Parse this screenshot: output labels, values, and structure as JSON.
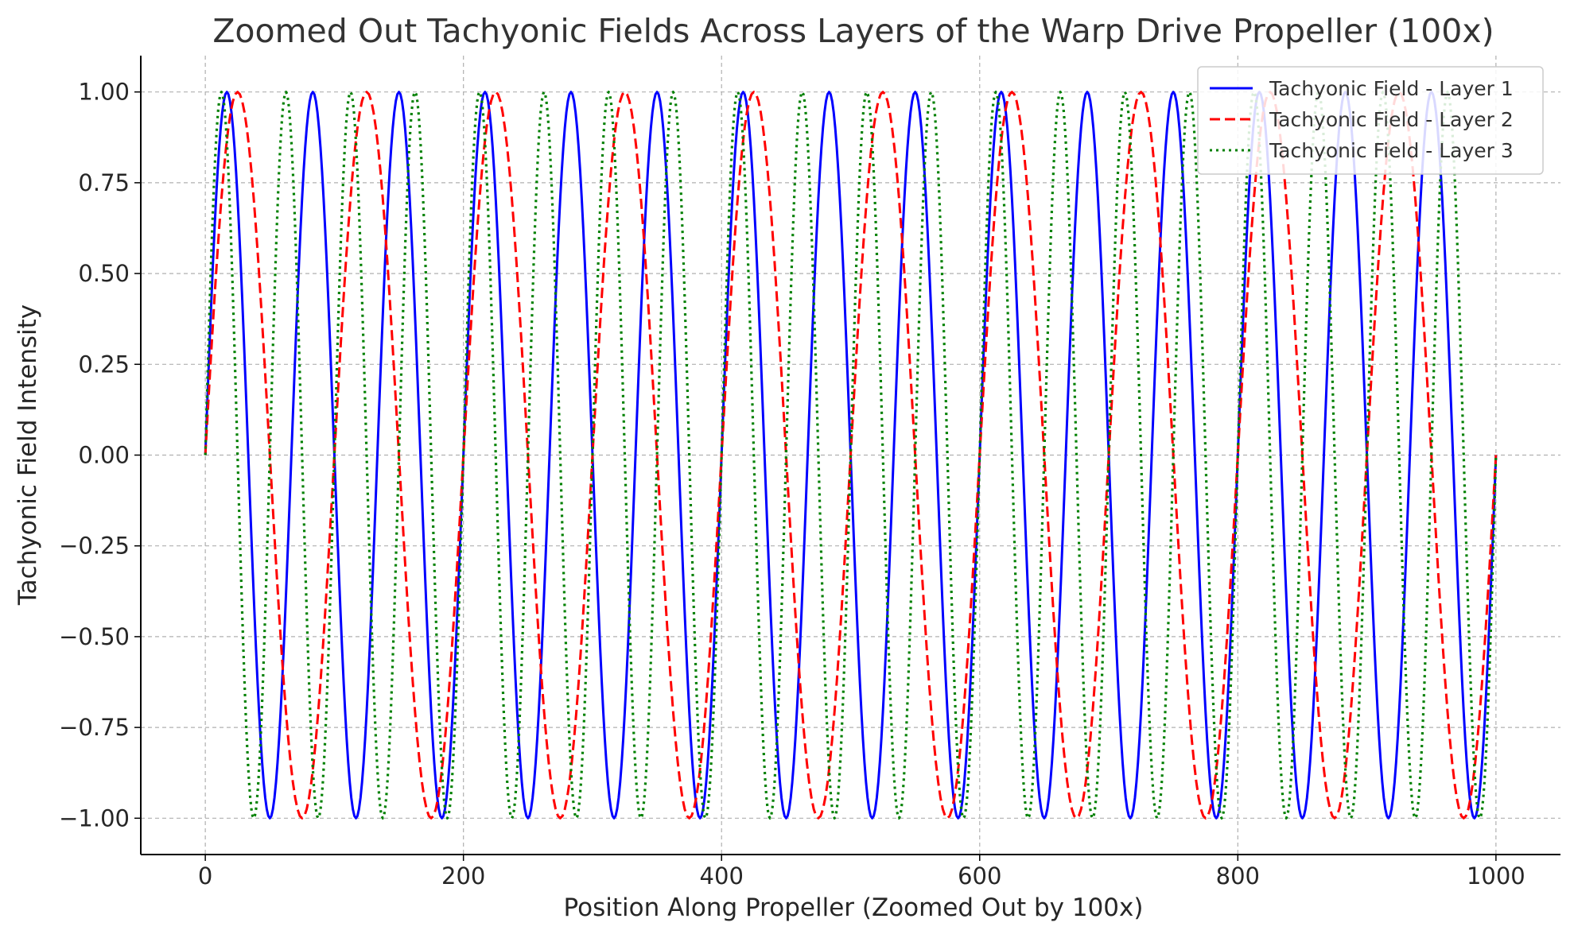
{
  "chart_data": {
    "type": "line",
    "title": "Zoomed Out Tachyonic Fields Across Layers of the Warp Drive Propeller (100x)",
    "xlabel": "Position Along Propeller (Zoomed Out by 100x)",
    "ylabel": "Tachyonic Field Intensity",
    "xlim": [
      -50,
      1050
    ],
    "ylim": [
      -1.1,
      1.1
    ],
    "xticks": [
      0,
      200,
      400,
      600,
      800,
      1000
    ],
    "xtick_labels": [
      "0",
      "200",
      "400",
      "600",
      "800",
      "1000"
    ],
    "yticks": [
      1.0,
      0.75,
      0.5,
      0.25,
      0.0,
      -0.25,
      -0.5,
      -0.75,
      -1.0
    ],
    "ytick_labels": [
      "1.00",
      "0.75",
      "0.50",
      "0.25",
      "0.00",
      "−0.25",
      "−0.50",
      "−0.75",
      "−1.00"
    ],
    "grid": true,
    "legend_position": "top-right",
    "series": [
      {
        "name": "Tachyonic Field - Layer 1",
        "color": "#0000ff",
        "style": "solid",
        "x": [
          0,
          16.7,
          33.3,
          50,
          66.7,
          83.3,
          100,
          116.7,
          133.3,
          150,
          166.7,
          183.3,
          200,
          216.7,
          233.3,
          250,
          266.7,
          283.3,
          300,
          316.7,
          333.3,
          350,
          366.7,
          383.3,
          400,
          416.7,
          433.3,
          450,
          466.7,
          483.3,
          500,
          516.7,
          533.3,
          550,
          566.7,
          583.3,
          600,
          616.7,
          633.3,
          650,
          666.7,
          683.3,
          700,
          716.7,
          733.3,
          750,
          766.7,
          783.3,
          800,
          816.7,
          833.3,
          850,
          866.7,
          883.3,
          900,
          916.7,
          933.3,
          950,
          966.7,
          983.3,
          1000
        ],
        "y": [
          0,
          1,
          0,
          -1,
          0,
          1,
          0,
          -1,
          0,
          1,
          0,
          -1,
          0,
          1,
          0,
          -1,
          0,
          1,
          0,
          -1,
          0,
          1,
          0,
          -1,
          0,
          1,
          0,
          -1,
          0,
          1,
          0,
          -1,
          0,
          1,
          0,
          -1,
          0,
          1,
          0,
          -1,
          0,
          1,
          0,
          -1,
          0,
          1,
          0,
          -1,
          0,
          1,
          0,
          -1,
          0,
          1,
          0,
          -1,
          0,
          1,
          0,
          -1,
          0
        ]
      },
      {
        "name": "Tachyonic Field - Layer 2",
        "color": "#ff0000",
        "style": "dashed",
        "x": [
          0,
          25,
          50,
          75,
          100,
          125,
          150,
          175,
          200,
          225,
          250,
          275,
          300,
          325,
          350,
          375,
          400,
          425,
          450,
          475,
          500,
          525,
          550,
          575,
          600,
          625,
          650,
          675,
          700,
          725,
          750,
          775,
          800,
          825,
          850,
          875,
          900,
          925,
          950,
          975,
          1000
        ],
        "y": [
          0,
          1,
          0,
          -1,
          0,
          1,
          0,
          -1,
          0,
          1,
          0,
          -1,
          0,
          1,
          0,
          -1,
          0,
          1,
          0,
          -1,
          0,
          1,
          0,
          -1,
          0,
          1,
          0,
          -1,
          0,
          1,
          0,
          -1,
          0,
          1,
          0,
          -1,
          0,
          1,
          0,
          -1,
          0
        ]
      },
      {
        "name": "Tachyonic Field - Layer 3",
        "color": "#008000",
        "style": "dotted",
        "x": [
          0,
          12.5,
          25,
          37.5,
          50,
          62.5,
          75,
          87.5,
          100,
          112.5,
          125,
          137.5,
          150,
          162.5,
          175,
          187.5,
          200,
          212.5,
          225,
          237.5,
          250,
          262.5,
          275,
          287.5,
          300,
          312.5,
          325,
          337.5,
          350,
          362.5,
          375,
          387.5,
          400,
          412.5,
          425,
          437.5,
          450,
          462.5,
          475,
          487.5,
          500,
          512.5,
          525,
          537.5,
          550,
          562.5,
          575,
          587.5,
          600,
          612.5,
          625,
          637.5,
          650,
          662.5,
          675,
          687.5,
          700,
          712.5,
          725,
          737.5,
          750,
          762.5,
          775,
          787.5,
          800,
          812.5,
          825,
          837.5,
          850,
          862.5,
          875,
          887.5,
          900,
          912.5,
          925,
          937.5,
          950,
          962.5,
          975,
          987.5,
          1000
        ],
        "y": [
          0,
          1,
          0,
          -1,
          0,
          1,
          0,
          -1,
          0,
          1,
          0,
          -1,
          0,
          1,
          0,
          -1,
          0,
          1,
          0,
          -1,
          0,
          1,
          0,
          -1,
          0,
          1,
          0,
          -1,
          0,
          1,
          0,
          -1,
          0,
          1,
          0,
          -1,
          0,
          1,
          0,
          -1,
          0,
          1,
          0,
          -1,
          0,
          1,
          0,
          -1,
          0,
          1,
          0,
          -1,
          0,
          1,
          0,
          -1,
          0,
          1,
          0,
          -1,
          0,
          1,
          0,
          -1,
          0,
          1,
          0,
          -1,
          0,
          1,
          0,
          -1,
          0,
          1,
          0,
          -1,
          0,
          1,
          0,
          -1,
          0
        ]
      }
    ]
  }
}
